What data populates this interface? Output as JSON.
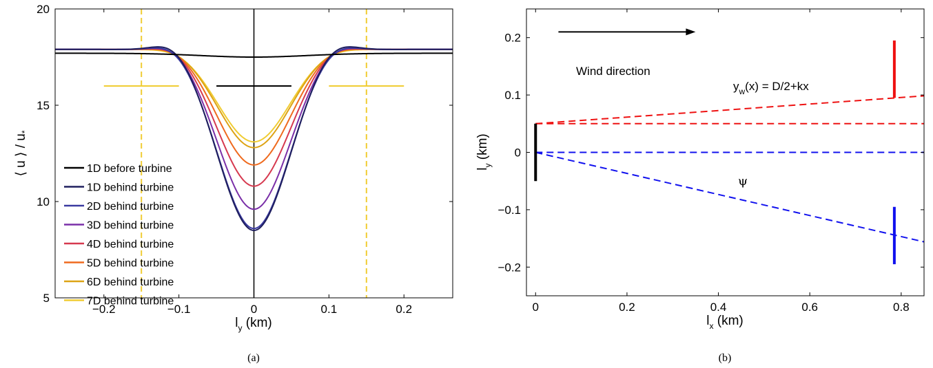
{
  "chart_data": [
    {
      "type": "line",
      "caption": "(a)",
      "xlabel": "l",
      "xlabel_sub": "y",
      "xlabel_unit": " (km)",
      "ylabel": "⟨ u ⟩ / u",
      "ylabel_sub": "*",
      "xlim": [
        -0.265,
        0.265
      ],
      "ylim": [
        5,
        20
      ],
      "xticks": [
        -0.2,
        -0.1,
        0,
        0.1,
        0.2
      ],
      "xtick_labels": [
        "−0.2",
        "−0.1",
        "0",
        "0.1",
        "0.2"
      ],
      "yticks": [
        5,
        10,
        15,
        20
      ],
      "ytick_labels": [
        "5",
        "10",
        "15",
        "20"
      ],
      "legend_position": "lower-left",
      "series": [
        {
          "name": "1D before turbine",
          "color": "#000000",
          "center": 17.5,
          "far": 17.7,
          "peak": 0.0
        },
        {
          "name": "1D behind turbine",
          "color": "#1f1f5e",
          "center": 8.5,
          "far": 17.9,
          "peak": 0.55
        },
        {
          "name": "2D behind turbine",
          "color": "#3a3aa0",
          "center": 8.6,
          "far": 17.9,
          "peak": 0.45
        },
        {
          "name": "3D behind turbine",
          "color": "#7a2fa8",
          "center": 9.6,
          "far": 17.9,
          "peak": 0.38
        },
        {
          "name": "4D behind turbine",
          "color": "#d6394f",
          "center": 10.8,
          "far": 17.9,
          "peak": 0.3
        },
        {
          "name": "5D behind turbine",
          "color": "#ef6a1e",
          "center": 11.9,
          "far": 17.9,
          "peak": 0.22
        },
        {
          "name": "6D behind turbine",
          "color": "#dda314",
          "center": 12.8,
          "far": 17.9,
          "peak": 0.15
        },
        {
          "name": "7D behind turbine",
          "color": "#f0cc32",
          "center": 13.1,
          "far": 17.9,
          "peak": 0.1
        }
      ],
      "dashed_vertical_lines": {
        "x": [
          -0.15,
          0.15
        ],
        "color": "#f0cc32"
      },
      "horizontal_segments": [
        {
          "x": [
            -0.2,
            -0.1
          ],
          "y": 16.0,
          "color": "#f0cc32"
        },
        {
          "x": [
            -0.05,
            0.05
          ],
          "y": 16.0,
          "color": "#000000"
        },
        {
          "x": [
            0.1,
            0.2
          ],
          "y": 16.0,
          "color": "#f0cc32"
        }
      ],
      "center_line": {
        "x": 0,
        "color": "#000000"
      }
    },
    {
      "type": "line",
      "caption": "(b)",
      "xlabel": "l",
      "xlabel_sub": "x",
      "xlabel_unit": " (km)",
      "ylabel": "l",
      "ylabel_sub": "y",
      "ylabel_unit": " (km)",
      "xlim": [
        -0.02,
        0.85
      ],
      "ylim": [
        -0.25,
        0.25
      ],
      "xticks": [
        0,
        0.2,
        0.4,
        0.6,
        0.8
      ],
      "xtick_labels": [
        "0",
        "0.2",
        "0.4",
        "0.6",
        "0.8"
      ],
      "yticks": [
        -0.2,
        -0.1,
        0,
        0.1,
        0.2
      ],
      "ytick_labels": [
        "−0.2",
        "−0.1",
        "0",
        "0.1",
        "0.2"
      ],
      "annotations": {
        "wind_label": "Wind direction",
        "wind_arrow": {
          "x0": 0.05,
          "x1": 0.35,
          "y": 0.21
        },
        "formula_pre": "y",
        "formula_sub": "w",
        "formula_post": "(x) = D/2+kx",
        "psi": "ψ"
      },
      "lines": [
        {
          "name": "red-wake-expansion",
          "color": "#ee1111",
          "dashed": true,
          "x": [
            0,
            0.85
          ],
          "y": [
            0.05,
            0.0985
          ]
        },
        {
          "name": "red-horizontal",
          "color": "#ee1111",
          "dashed": true,
          "x": [
            0,
            0.85
          ],
          "y": [
            0.05,
            0.05
          ]
        },
        {
          "name": "blue-horizontal",
          "color": "#1111ee",
          "dashed": true,
          "x": [
            0,
            0.85
          ],
          "y": [
            0,
            0
          ]
        },
        {
          "name": "blue-diagonal",
          "color": "#1111ee",
          "dashed": true,
          "x": [
            0,
            0.85
          ],
          "y": [
            0,
            -0.156
          ]
        }
      ],
      "bars": [
        {
          "name": "turbine",
          "color": "#000000",
          "x": 0,
          "y": [
            -0.05,
            0.05
          ]
        },
        {
          "name": "red-bar",
          "color": "#ee1111",
          "x": 0.785,
          "y": [
            0.095,
            0.195
          ]
        },
        {
          "name": "blue-bar",
          "color": "#1111ee",
          "x": 0.785,
          "y": [
            -0.195,
            -0.095
          ]
        }
      ]
    }
  ]
}
